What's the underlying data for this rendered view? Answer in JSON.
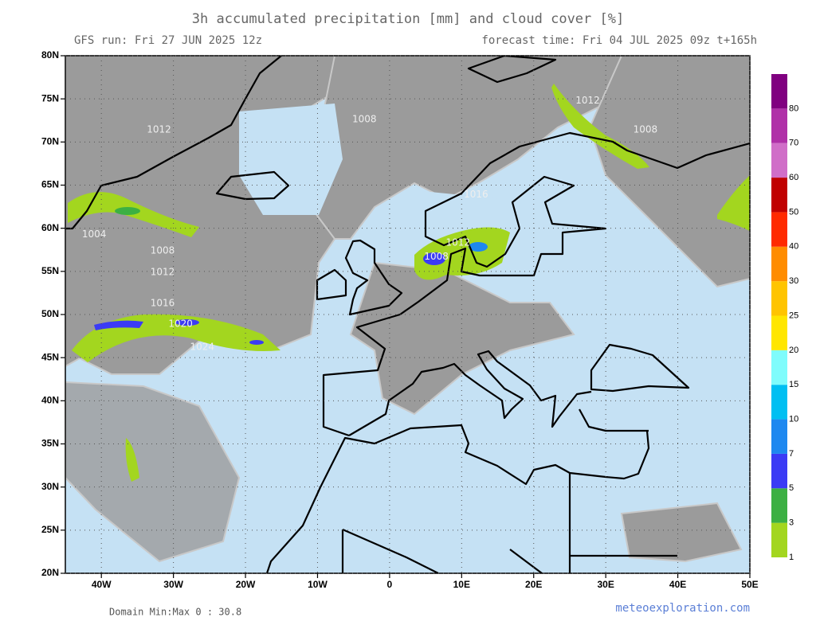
{
  "header": {
    "title": "3h accumulated precipitation [mm] and cloud cover [%]",
    "run": "GFS run: Fri 27 JUN 2025 12z",
    "forecast": "forecast time: Fri 04 JUL 2025 09z  t+165h"
  },
  "map": {
    "lon_range": [
      -45,
      50
    ],
    "lat_range": [
      20,
      80
    ],
    "grid": true,
    "lon_ticks": [
      {
        "value": -40,
        "label": "40W"
      },
      {
        "value": -30,
        "label": "30W"
      },
      {
        "value": -20,
        "label": "20W"
      },
      {
        "value": -10,
        "label": "10W"
      },
      0,
      {
        "value": 10,
        "label": "10E"
      },
      {
        "value": 20,
        "label": "20E"
      },
      {
        "value": 30,
        "label": "30E"
      },
      {
        "value": 40,
        "label": "40E"
      },
      {
        "value": 50,
        "label": "50E"
      }
    ],
    "lat_ticks": [
      {
        "value": 80,
        "label": "80N"
      },
      {
        "value": 75,
        "label": "75N"
      },
      {
        "value": 70,
        "label": "70N"
      },
      {
        "value": 65,
        "label": "65N"
      },
      {
        "value": 60,
        "label": "60N"
      },
      {
        "value": 55,
        "label": "55N"
      },
      {
        "value": 50,
        "label": "50N"
      },
      {
        "value": 45,
        "label": "45N"
      },
      {
        "value": 40,
        "label": "40N"
      },
      {
        "value": 35,
        "label": "35N"
      },
      {
        "value": 30,
        "label": "30N"
      },
      {
        "value": 25,
        "label": "25N"
      },
      {
        "value": 20,
        "label": "20N"
      }
    ],
    "isobars": [
      {
        "label": "1008",
        "lon": 6.5,
        "lat": 56.7
      },
      {
        "label": "1012",
        "lon": 9.5,
        "lat": 58.3
      },
      {
        "label": "1016",
        "lon": 12,
        "lat": 63.9
      },
      {
        "label": "1004",
        "lon": -41,
        "lat": 59.3
      },
      {
        "label": "1008",
        "lon": -31.5,
        "lat": 57.4
      },
      {
        "label": "1012",
        "lon": -31.5,
        "lat": 54.9
      },
      {
        "label": "1016",
        "lon": -31.5,
        "lat": 51.3
      },
      {
        "label": "1020",
        "lon": -29,
        "lat": 48.9
      },
      {
        "label": "1024",
        "lon": -26,
        "lat": 46.2
      },
      {
        "label": "1012",
        "lon": -32,
        "lat": 71.4
      },
      {
        "label": "1008",
        "lon": -3.5,
        "lat": 72.6
      },
      {
        "label": "1012",
        "lon": 27.5,
        "lat": 74.8
      },
      {
        "label": "1008",
        "lon": 35.5,
        "lat": 71.4
      }
    ]
  },
  "colorbar": {
    "levels": [
      1,
      3,
      5,
      7,
      10,
      15,
      20,
      25,
      30,
      40,
      50,
      60,
      70,
      80
    ],
    "colors": [
      "#a3d61f",
      "#3cb043",
      "#3b3bf5",
      "#1e88f0",
      "#00bff2",
      "#7ffcfc",
      "#ffe600",
      "#ffc400",
      "#ff8c00",
      "#ff2a00",
      "#c00000",
      "#d06ec8",
      "#b030a8",
      "#800080"
    ]
  },
  "footer": {
    "domain": "Domain Min:Max 0 : 30.8",
    "credit": "meteoexploration.com"
  }
}
